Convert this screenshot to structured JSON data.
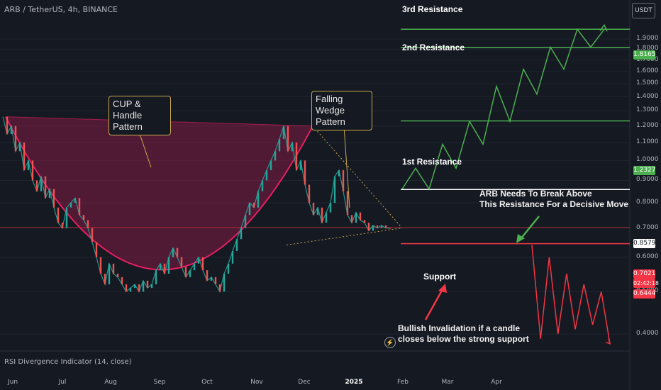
{
  "header": {
    "symbol_info": "ARB / TetherUS, 4h, BINANCE",
    "currency": "USDT"
  },
  "callouts": {
    "cup_handle": [
      "CUP & Handle",
      "Pattern"
    ],
    "falling_wedge": [
      "Falling Wedge",
      "Pattern"
    ]
  },
  "levels": {
    "resistance3": "3rd Resistance",
    "resistance2": "2nd Resistance",
    "resistance1": "1st Resistance",
    "support": "Support",
    "break_note_line1": "ARB Needs To Break Above",
    "break_note_line2": "This Resistance For a Decisive Move",
    "invalidation_line1": "Bullish Invalidation if a candle",
    "invalidation_line2": "closes below the strong support"
  },
  "price_tags": {
    "r2": "1.8165",
    "r1": "1.2327",
    "key": "0.8579",
    "current": "0.7021",
    "countdown": "02:42:18",
    "support": "0.6444"
  },
  "colors": {
    "background": "#151922",
    "resistance": "#4caf50",
    "support": "#f23645",
    "cup": "#e91e63",
    "callout_border": "#c9a94e",
    "key_level": "#ffffff"
  },
  "indicator": {
    "label": "RSI Divergence Indicator (14, close)"
  },
  "chart_data": {
    "type": "line",
    "title": "ARB / TetherUS, 4h, BINANCE",
    "y_scale": "log",
    "y_ticks": [
      "1.9000",
      "1.8000",
      "1.7000",
      "1.6000",
      "1.5000",
      "1.4000",
      "1.3000",
      "1.2000",
      "1.1000",
      "1.0000",
      "0.9000",
      "0.8000",
      "0.7000",
      "0.6000",
      "0.5000",
      "0.4000"
    ],
    "x_ticks": [
      "Jun",
      "Jul",
      "Aug",
      "Sep",
      "Oct",
      "Nov",
      "Dec",
      "2025",
      "Feb",
      "Mar",
      "Apr"
    ],
    "x_ticks_bold": [
      "2025"
    ],
    "levels": [
      {
        "name": "3rd Resistance",
        "value": 2.0
      },
      {
        "name": "2nd Resistance",
        "value": 1.8165
      },
      {
        "name": "1st Resistance",
        "value": 1.2327
      },
      {
        "name": "key level",
        "value": 0.8579
      },
      {
        "name": "current price",
        "value": 0.7021
      },
      {
        "name": "Support",
        "value": 0.6444
      }
    ],
    "price_path": [
      1.26,
      1.15,
      1.2,
      1.05,
      1.1,
      0.95,
      1.0,
      0.9,
      0.85,
      0.92,
      0.82,
      0.86,
      0.78,
      0.72,
      0.7,
      0.78,
      0.8,
      0.82,
      0.75,
      0.73,
      0.7,
      0.65,
      0.6,
      0.55,
      0.52,
      0.58,
      0.55,
      0.54,
      0.52,
      0.5,
      0.51,
      0.52,
      0.5,
      0.53,
      0.51,
      0.52,
      0.56,
      0.58,
      0.55,
      0.6,
      0.63,
      0.6,
      0.57,
      0.54,
      0.56,
      0.58,
      0.6,
      0.56,
      0.53,
      0.54,
      0.52,
      0.5,
      0.55,
      0.58,
      0.62,
      0.66,
      0.7,
      0.75,
      0.8,
      0.78,
      0.85,
      0.9,
      0.95,
      1.0,
      1.05,
      1.12,
      1.2,
      1.05,
      1.1,
      0.95,
      1.0,
      0.88,
      0.8,
      0.75,
      0.78,
      0.72,
      0.76,
      0.8,
      0.92,
      0.95,
      0.85,
      0.75,
      0.72,
      0.76,
      0.73,
      0.72,
      0.69,
      0.71,
      0.7,
      0.71,
      0.7,
      0.7
    ],
    "projection_bullish": [
      0.86,
      0.96,
      0.86,
      1.09,
      0.96,
      1.23,
      1.09,
      1.48,
      1.23,
      1.62,
      1.42,
      1.82,
      1.62,
      2.0,
      1.82,
      2.0
    ],
    "projection_bearish": [
      0.64,
      0.39,
      0.6,
      0.4,
      0.55,
      0.41,
      0.52,
      0.42,
      0.5,
      0.38
    ],
    "cup_rim": [
      1.26,
      1.2
    ]
  }
}
